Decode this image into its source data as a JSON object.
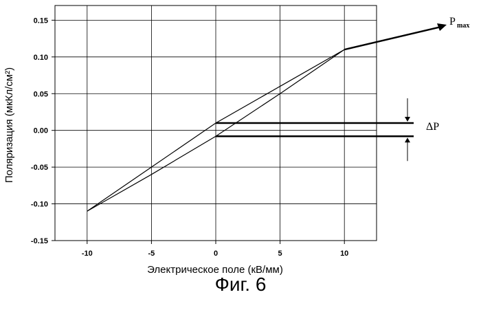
{
  "caption": "Фиг. 6",
  "colors": {
    "line": "#000000",
    "grid": "#000000",
    "background": "#ffffff"
  },
  "chart_data": {
    "type": "line",
    "title": "",
    "xlabel": "Электрическое поле (кВ/мм)",
    "ylabel": "Поляризация (мкКл/см²)",
    "xlim": [
      -12.5,
      12.5
    ],
    "ylim": [
      -0.15,
      0.17
    ],
    "grid": true,
    "x_ticks": [
      -10,
      -5,
      0,
      5,
      10
    ],
    "y_ticks": [
      -0.15,
      -0.1,
      -0.05,
      0.0,
      0.05,
      0.1,
      0.15
    ],
    "x_tick_labels": [
      "-10",
      "-5",
      "0",
      "5",
      "10"
    ],
    "y_tick_labels": [
      "-0.15",
      "-0.10",
      "-0.05",
      "0.00",
      "0.05",
      "0.10",
      "0.15"
    ],
    "series": [
      {
        "x": [
          -10,
          -5,
          0,
          5,
          10
        ],
        "y": [
          -0.11,
          -0.05,
          0.01,
          0.06,
          0.11
        ]
      },
      {
        "x": [
          10,
          5,
          0,
          -5,
          -10
        ],
        "y": [
          0.11,
          0.05,
          -0.008,
          -0.06,
          -0.11
        ]
      }
    ],
    "annotations": {
      "pmax": {
        "label": "P",
        "subscript": "max",
        "point": [
          10,
          0.11
        ]
      },
      "delta_p": {
        "label": "ΔP",
        "upper": 0.01,
        "lower": -0.008
      }
    }
  }
}
